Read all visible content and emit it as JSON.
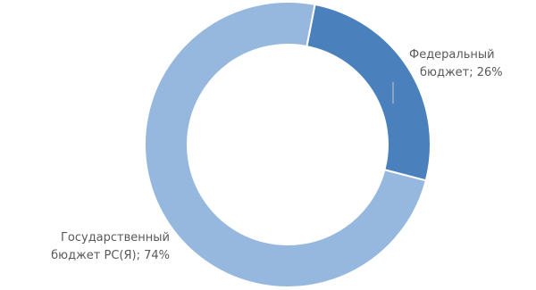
{
  "chart_data": {
    "type": "pie",
    "style": "donut",
    "title": "",
    "slices": [
      {
        "name": "Федеральный бюджет",
        "value": 26,
        "color": "#4a81bd",
        "label_line1": "Федеральный",
        "label_line2": "бюджет; 26%"
      },
      {
        "name": "Государственный бюджет РС(Я)",
        "value": 74,
        "color": "#96b8df",
        "label_line1": "Государственный",
        "label_line2": "бюджет РС(Я); 74%"
      }
    ],
    "legend": "none",
    "start_angle_deg": 11
  }
}
